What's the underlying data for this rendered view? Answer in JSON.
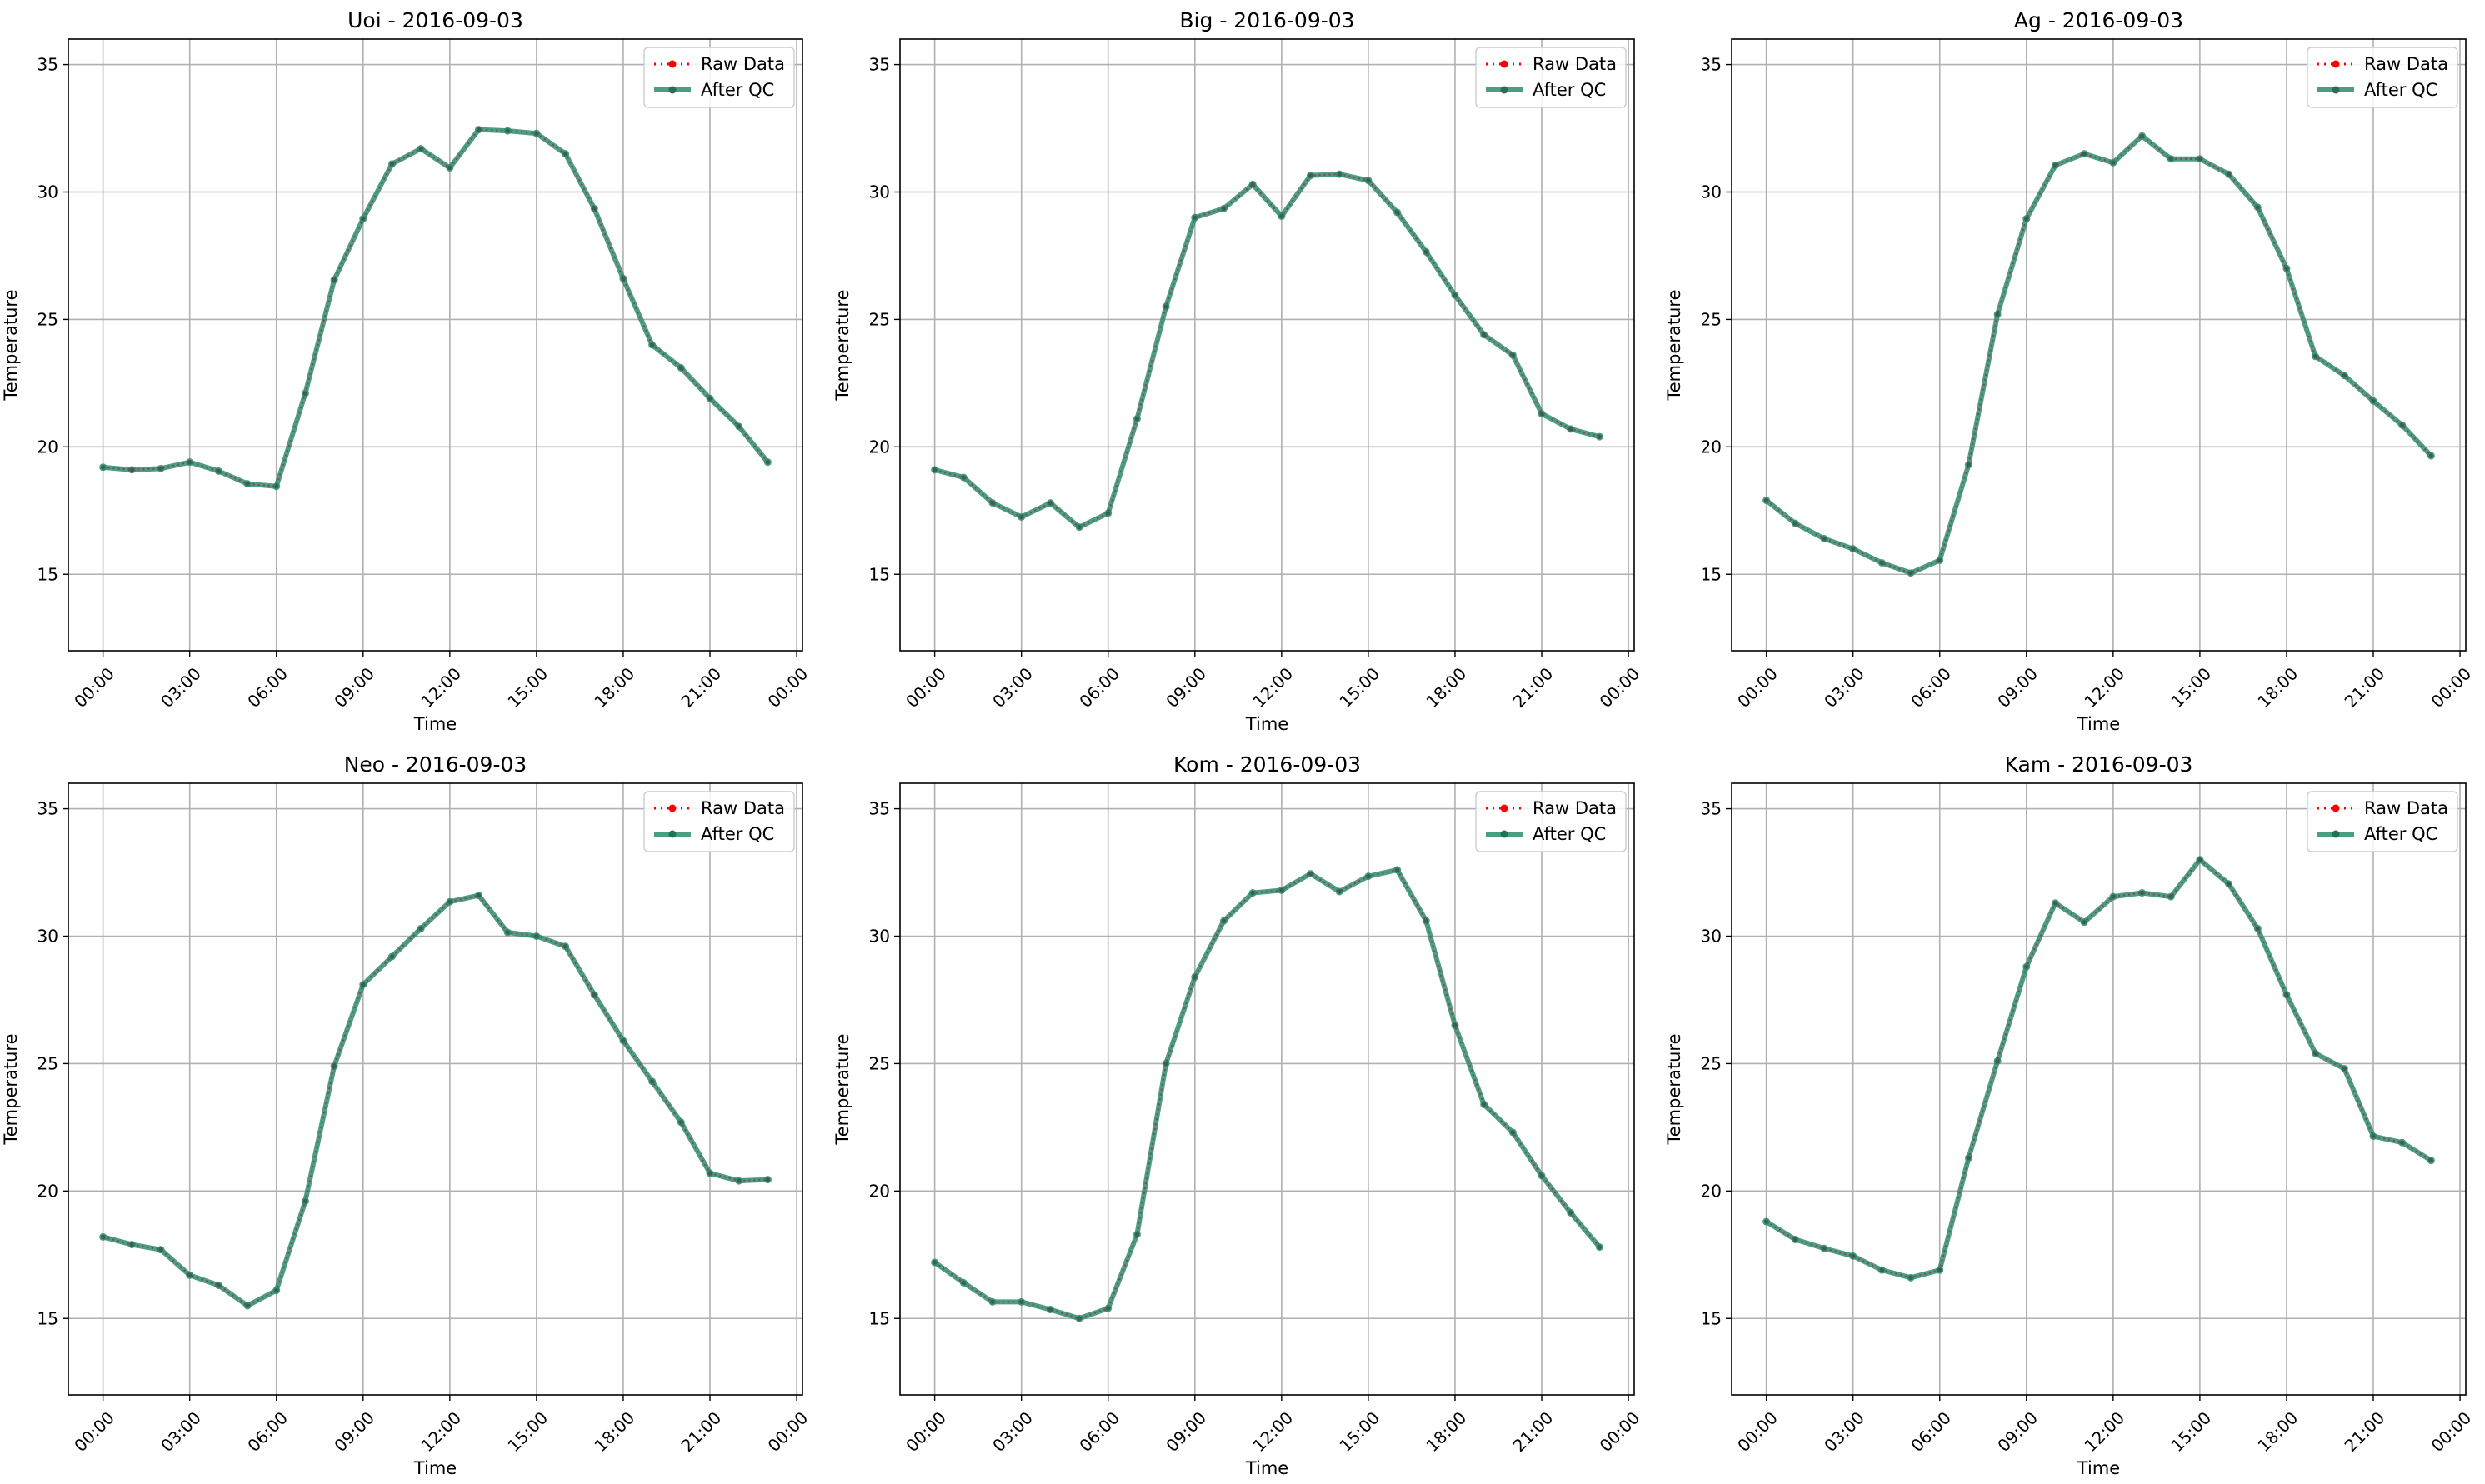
{
  "chart_data": [
    {
      "type": "line",
      "title": "Uoi - 2016-09-03",
      "xlabel": "Time",
      "ylabel": "Temperature",
      "x_tick_labels": [
        "00:00",
        "03:00",
        "06:00",
        "09:00",
        "12:00",
        "15:00",
        "18:00",
        "21:00",
        "00:00"
      ],
      "y_ticks": [
        15,
        20,
        25,
        30,
        35
      ],
      "ylim": [
        12,
        36
      ],
      "xlim_hours": [
        -1.2,
        24.2
      ],
      "grid": true,
      "legend_position": "top-right",
      "x_hours": [
        0,
        1,
        2,
        3,
        4,
        5,
        6,
        7,
        8,
        9,
        10,
        11,
        12,
        13,
        14,
        15,
        16,
        17,
        18,
        19,
        20,
        21,
        22,
        23
      ],
      "series": [
        {
          "name": "Raw Data",
          "color": "#ff0000",
          "style": "dotted-markers",
          "values": [
            19.2,
            19.1,
            19.15,
            19.4,
            19.05,
            18.55,
            18.45,
            22.1,
            26.55,
            28.95,
            31.1,
            31.7,
            30.95,
            32.45,
            32.4,
            32.3,
            31.5,
            29.35,
            26.6,
            24.0,
            23.1,
            21.9,
            20.8,
            19.4
          ]
        },
        {
          "name": "After QC",
          "color": "#2e8b6f",
          "style": "solid-markers",
          "values": [
            19.2,
            19.1,
            19.15,
            19.4,
            19.05,
            18.55,
            18.45,
            22.1,
            26.55,
            28.95,
            31.1,
            31.7,
            30.95,
            32.45,
            32.4,
            32.3,
            31.5,
            29.35,
            26.6,
            24.0,
            23.1,
            21.9,
            20.8,
            19.4
          ]
        }
      ]
    },
    {
      "type": "line",
      "title": "Big - 2016-09-03",
      "xlabel": "Time",
      "ylabel": "Temperature",
      "x_tick_labels": [
        "00:00",
        "03:00",
        "06:00",
        "09:00",
        "12:00",
        "15:00",
        "18:00",
        "21:00",
        "00:00"
      ],
      "y_ticks": [
        15,
        20,
        25,
        30,
        35
      ],
      "ylim": [
        12,
        36
      ],
      "xlim_hours": [
        -1.2,
        24.2
      ],
      "grid": true,
      "legend_position": "top-right",
      "x_hours": [
        0,
        1,
        2,
        3,
        4,
        5,
        6,
        7,
        8,
        9,
        10,
        11,
        12,
        13,
        14,
        15,
        16,
        17,
        18,
        19,
        20,
        21,
        22,
        23
      ],
      "series": [
        {
          "name": "Raw Data",
          "color": "#ff0000",
          "style": "dotted-markers",
          "values": [
            19.1,
            18.8,
            17.8,
            17.25,
            17.8,
            16.85,
            17.4,
            21.1,
            25.5,
            29.0,
            29.35,
            30.3,
            29.05,
            30.65,
            30.7,
            30.45,
            29.2,
            27.65,
            25.95,
            24.4,
            23.6,
            21.3,
            20.7,
            20.4
          ]
        },
        {
          "name": "After QC",
          "color": "#2e8b6f",
          "style": "solid-markers",
          "values": [
            19.1,
            18.8,
            17.8,
            17.25,
            17.8,
            16.85,
            17.4,
            21.1,
            25.5,
            29.0,
            29.35,
            30.3,
            29.05,
            30.65,
            30.7,
            30.45,
            29.2,
            27.65,
            25.95,
            24.4,
            23.6,
            21.3,
            20.7,
            20.4
          ]
        }
      ]
    },
    {
      "type": "line",
      "title": "Ag - 2016-09-03",
      "xlabel": "Time",
      "ylabel": "Temperature",
      "x_tick_labels": [
        "00:00",
        "03:00",
        "06:00",
        "09:00",
        "12:00",
        "15:00",
        "18:00",
        "21:00",
        "00:00"
      ],
      "y_ticks": [
        15,
        20,
        25,
        30,
        35
      ],
      "ylim": [
        12,
        36
      ],
      "xlim_hours": [
        -1.2,
        24.2
      ],
      "grid": true,
      "legend_position": "top-right",
      "x_hours": [
        0,
        1,
        2,
        3,
        4,
        5,
        6,
        7,
        8,
        9,
        10,
        11,
        12,
        13,
        14,
        15,
        16,
        17,
        18,
        19,
        20,
        21,
        22,
        23
      ],
      "series": [
        {
          "name": "Raw Data",
          "color": "#ff0000",
          "style": "dotted-markers",
          "values": [
            17.9,
            17.0,
            16.4,
            16.0,
            15.45,
            15.05,
            15.55,
            19.3,
            25.2,
            28.95,
            31.05,
            31.5,
            31.15,
            32.2,
            31.3,
            31.3,
            30.7,
            29.4,
            27.0,
            23.55,
            22.8,
            21.8,
            20.85,
            19.65
          ]
        },
        {
          "name": "After QC",
          "color": "#2e8b6f",
          "style": "solid-markers",
          "values": [
            17.9,
            17.0,
            16.4,
            16.0,
            15.45,
            15.05,
            15.55,
            19.3,
            25.2,
            28.95,
            31.05,
            31.5,
            31.15,
            32.2,
            31.3,
            31.3,
            30.7,
            29.4,
            27.0,
            23.55,
            22.8,
            21.8,
            20.85,
            19.65
          ]
        }
      ]
    },
    {
      "type": "line",
      "title": "Neo - 2016-09-03",
      "xlabel": "Time",
      "ylabel": "Temperature",
      "x_tick_labels": [
        "00:00",
        "03:00",
        "06:00",
        "09:00",
        "12:00",
        "15:00",
        "18:00",
        "21:00",
        "00:00"
      ],
      "y_ticks": [
        15,
        20,
        25,
        30,
        35
      ],
      "ylim": [
        12,
        36
      ],
      "xlim_hours": [
        -1.2,
        24.2
      ],
      "grid": true,
      "legend_position": "top-right",
      "x_hours": [
        0,
        1,
        2,
        3,
        4,
        5,
        6,
        7,
        8,
        9,
        10,
        11,
        12,
        13,
        14,
        15,
        16,
        17,
        18,
        19,
        20,
        21,
        22,
        23
      ],
      "series": [
        {
          "name": "Raw Data",
          "color": "#ff0000",
          "style": "dotted-markers",
          "values": [
            18.2,
            17.9,
            17.7,
            16.7,
            16.3,
            15.5,
            16.1,
            19.6,
            24.9,
            28.1,
            29.2,
            30.3,
            31.35,
            31.6,
            30.15,
            30.0,
            29.6,
            27.7,
            25.9,
            24.3,
            22.7,
            20.7,
            20.4,
            20.45
          ]
        },
        {
          "name": "After QC",
          "color": "#2e8b6f",
          "style": "solid-markers",
          "values": [
            18.2,
            17.9,
            17.7,
            16.7,
            16.3,
            15.5,
            16.1,
            19.6,
            24.9,
            28.1,
            29.2,
            30.3,
            31.35,
            31.6,
            30.15,
            30.0,
            29.6,
            27.7,
            25.9,
            24.3,
            22.7,
            20.7,
            20.4,
            20.45
          ]
        }
      ]
    },
    {
      "type": "line",
      "title": "Kom - 2016-09-03",
      "xlabel": "Time",
      "ylabel": "Temperature",
      "x_tick_labels": [
        "00:00",
        "03:00",
        "06:00",
        "09:00",
        "12:00",
        "15:00",
        "18:00",
        "21:00",
        "00:00"
      ],
      "y_ticks": [
        15,
        20,
        25,
        30,
        35
      ],
      "ylim": [
        12,
        36
      ],
      "xlim_hours": [
        -1.2,
        24.2
      ],
      "grid": true,
      "legend_position": "top-right",
      "x_hours": [
        0,
        1,
        2,
        3,
        4,
        5,
        6,
        7,
        8,
        9,
        10,
        11,
        12,
        13,
        14,
        15,
        16,
        17,
        18,
        19,
        20,
        21,
        22,
        23
      ],
      "series": [
        {
          "name": "Raw Data",
          "color": "#ff0000",
          "style": "dotted-markers",
          "values": [
            17.2,
            16.4,
            15.65,
            15.65,
            15.35,
            15.0,
            15.4,
            18.3,
            25.0,
            28.4,
            30.6,
            31.7,
            31.8,
            32.45,
            31.75,
            32.35,
            32.6,
            30.6,
            26.5,
            23.4,
            22.3,
            20.6,
            19.15,
            17.8
          ]
        },
        {
          "name": "After QC",
          "color": "#2e8b6f",
          "style": "solid-markers",
          "values": [
            17.2,
            16.4,
            15.65,
            15.65,
            15.35,
            15.0,
            15.4,
            18.3,
            25.0,
            28.4,
            30.6,
            31.7,
            31.8,
            32.45,
            31.75,
            32.35,
            32.6,
            30.6,
            26.5,
            23.4,
            22.3,
            20.6,
            19.15,
            17.8
          ]
        }
      ]
    },
    {
      "type": "line",
      "title": "Kam - 2016-09-03",
      "xlabel": "Time",
      "ylabel": "Temperature",
      "x_tick_labels": [
        "00:00",
        "03:00",
        "06:00",
        "09:00",
        "12:00",
        "15:00",
        "18:00",
        "21:00",
        "00:00"
      ],
      "y_ticks": [
        15,
        20,
        25,
        30,
        35
      ],
      "ylim": [
        12,
        36
      ],
      "xlim_hours": [
        -1.2,
        24.2
      ],
      "grid": true,
      "legend_position": "top-right",
      "x_hours": [
        0,
        1,
        2,
        3,
        4,
        5,
        6,
        7,
        8,
        9,
        10,
        11,
        12,
        13,
        14,
        15,
        16,
        17,
        18,
        19,
        20,
        21,
        22,
        23
      ],
      "series": [
        {
          "name": "Raw Data",
          "color": "#ff0000",
          "style": "dotted-markers",
          "values": [
            18.8,
            18.1,
            17.75,
            17.45,
            16.9,
            16.6,
            16.9,
            21.3,
            25.1,
            28.8,
            31.3,
            30.55,
            31.55,
            31.7,
            31.55,
            33.0,
            32.05,
            30.3,
            27.7,
            25.4,
            24.8,
            22.15,
            21.9,
            21.2
          ]
        },
        {
          "name": "After QC",
          "color": "#2e8b6f",
          "style": "solid-markers",
          "values": [
            18.8,
            18.1,
            17.75,
            17.45,
            16.9,
            16.6,
            16.9,
            21.3,
            25.1,
            28.8,
            31.3,
            30.55,
            31.55,
            31.7,
            31.55,
            33.0,
            32.05,
            30.3,
            27.7,
            25.4,
            24.8,
            22.15,
            21.9,
            21.2
          ]
        }
      ]
    }
  ]
}
